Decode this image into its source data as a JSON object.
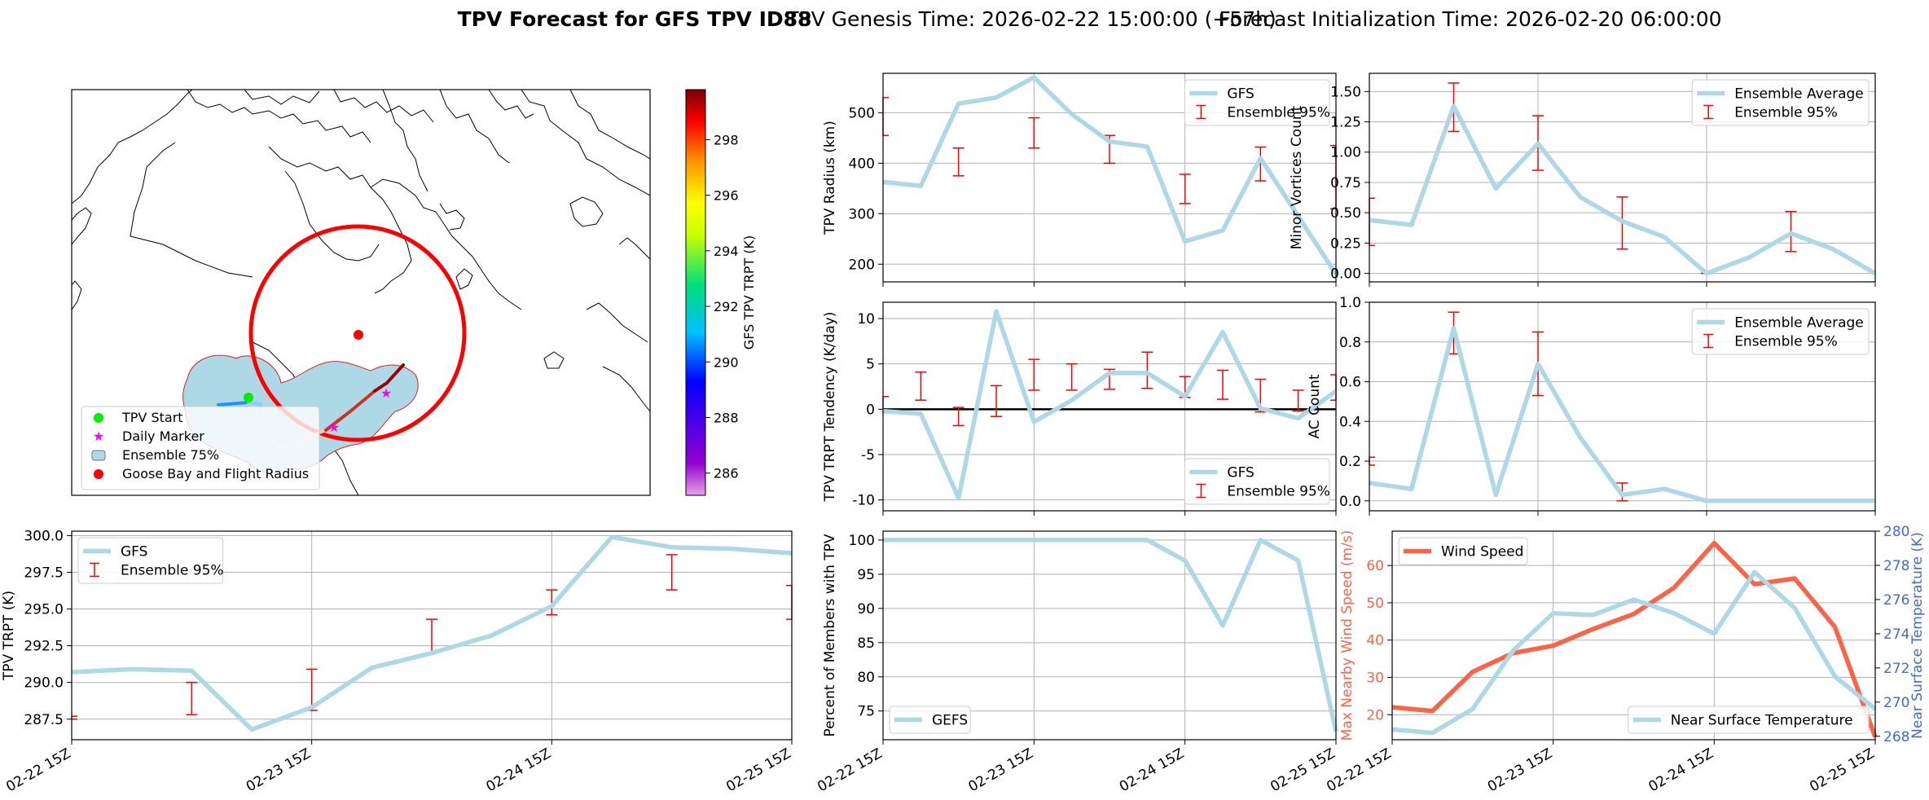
{
  "header": {
    "title_bold": "TPV Forecast for GFS TPV ID88",
    "title_genesis": "TPV Genesis Time: 2026-02-22 15:00:00 (+57h)",
    "title_init": "Forecast Initialization Time: 2026-02-20 06:00:00"
  },
  "colors": {
    "gfs_line": "#add8e6",
    "ensemble_err": "#ff0000",
    "wind": "#ff6347",
    "temp_axis": "#4169e1",
    "flight_radius": "#ff0000"
  },
  "x_ticks": [
    "02-22 15Z",
    "02-23 15Z",
    "02-24 15Z",
    "02-25 15Z"
  ],
  "map": {
    "colorbar_label": "GFS TPV TRPT (K)",
    "colorbar_ticks": [
      "286",
      "288",
      "290",
      "292",
      "294",
      "296",
      "298"
    ],
    "legend": [
      {
        "label": "TPV Start",
        "icon": "green-dot"
      },
      {
        "label": "Daily Marker",
        "icon": "magenta-star"
      },
      {
        "label": "Ensemble 75%",
        "icon": "lightblue-patch"
      },
      {
        "label": "Goose Bay and Flight Radius",
        "icon": "red-dot"
      }
    ]
  },
  "chart_data": [
    {
      "id": "radius",
      "type": "line",
      "title": "",
      "ylabel": "TPV Radius (km)",
      "ylim": [
        165,
        578
      ],
      "yticks": [
        200,
        300,
        400,
        500
      ],
      "x": [
        0,
        1,
        2,
        3,
        4,
        5,
        6,
        7,
        8,
        9,
        10,
        11,
        12
      ],
      "series": [
        {
          "name": "GFS",
          "values": [
            363,
            355,
            518,
            530,
            570,
            497,
            443,
            433,
            245,
            267,
            410,
            295,
            180
          ]
        }
      ],
      "errorbars": {
        "name": "Ensemble 95%",
        "x": [
          0,
          2,
          4,
          6,
          8,
          10,
          12
        ],
        "low": [
          455,
          375,
          430,
          400,
          320,
          365,
          310
        ],
        "high": [
          530,
          430,
          490,
          455,
          378,
          432,
          435
        ]
      },
      "legend": "upper right"
    },
    {
      "id": "minor",
      "type": "line",
      "title": "",
      "ylabel": "Minor Vortices Count",
      "ylim": [
        -0.07,
        1.65
      ],
      "yticks": [
        "0.00",
        "0.25",
        "0.50",
        "0.75",
        "1.00",
        "1.25",
        "1.50"
      ],
      "x": [
        0,
        1,
        2,
        3,
        4,
        5,
        6,
        7,
        8,
        9,
        10,
        11,
        12
      ],
      "series": [
        {
          "name": "Ensemble Average",
          "values": [
            0.44,
            0.4,
            1.38,
            0.7,
            1.07,
            0.63,
            0.43,
            0.3,
            0.0,
            0.13,
            0.33,
            0.2,
            0.0
          ]
        }
      ],
      "errorbars": {
        "name": "Ensemble 95%",
        "x": [
          0,
          2,
          4,
          6,
          8,
          10
        ],
        "low": [
          0.23,
          1.17,
          0.85,
          0.2,
          0.0,
          0.18
        ],
        "high": [
          0.62,
          1.57,
          1.3,
          0.63,
          0.0,
          0.51
        ]
      },
      "legend": "upper right"
    },
    {
      "id": "tendency",
      "type": "line",
      "title": "",
      "ylabel": "TPV TRPT Tendency (K/day)",
      "ylim": [
        -11.2,
        11.8
      ],
      "yticks": [
        -10,
        -5,
        0,
        5,
        10
      ],
      "zero_line": true,
      "x": [
        0,
        1,
        2,
        3,
        4,
        5,
        6,
        7,
        8,
        9,
        10,
        11,
        12
      ],
      "series": [
        {
          "name": "GFS",
          "values": [
            -0.2,
            -0.5,
            -9.8,
            10.8,
            -1.4,
            1.0,
            4.0,
            4.0,
            1.4,
            8.5,
            0.1,
            -1.0,
            2.0
          ]
        }
      ],
      "errorbars": {
        "name": "Ensemble 95%",
        "x": [
          0,
          1,
          2,
          3,
          4,
          5,
          6,
          7,
          8,
          9,
          10,
          11,
          12
        ],
        "low": [
          -0.4,
          1.0,
          -1.8,
          -0.8,
          2.1,
          2.1,
          2.2,
          2.3,
          1.3,
          1.1,
          -0.3,
          -0.2,
          1.0
        ],
        "high": [
          1.4,
          4.1,
          0.2,
          2.6,
          5.5,
          5.0,
          4.4,
          6.3,
          3.6,
          4.3,
          3.3,
          2.1,
          3.8
        ]
      },
      "legend": "lower right"
    },
    {
      "id": "ac",
      "type": "line",
      "title": "",
      "ylabel": "AC Count",
      "ylim": [
        -0.05,
        1.0
      ],
      "yticks": [
        "0.0",
        "0.2",
        "0.4",
        "0.6",
        "0.8",
        "1.0"
      ],
      "x": [
        0,
        1,
        2,
        3,
        4,
        5,
        6,
        7,
        8,
        9,
        10,
        11,
        12
      ],
      "series": [
        {
          "name": "Ensemble Average",
          "values": [
            0.09,
            0.06,
            0.87,
            0.03,
            0.69,
            0.32,
            0.03,
            0.06,
            0.0,
            0.0,
            0.0,
            0.0,
            0.0
          ]
        }
      ],
      "errorbars": {
        "name": "Ensemble 95%",
        "x": [
          0,
          2,
          4,
          6,
          8,
          10
        ],
        "low": [
          0.18,
          0.74,
          0.53,
          0.0,
          0.0,
          0.0
        ],
        "high": [
          0.22,
          0.95,
          0.85,
          0.09,
          0.0,
          0.0
        ]
      },
      "legend": "upper right"
    },
    {
      "id": "trpt",
      "type": "line",
      "title": "",
      "ylabel": "TPV TRPT (K)",
      "ylim": [
        286.1,
        300.3
      ],
      "yticks": [
        "287.5",
        "290.0",
        "292.5",
        "295.0",
        "297.5",
        "300.0"
      ],
      "x": [
        0,
        1,
        2,
        3,
        4,
        5,
        6,
        7,
        8,
        9,
        10,
        11,
        12
      ],
      "series": [
        {
          "name": "GFS",
          "values": [
            290.7,
            290.9,
            290.8,
            286.8,
            288.3,
            291.0,
            292.0,
            293.2,
            295.2,
            299.9,
            299.2,
            299.1,
            298.8
          ]
        }
      ],
      "errorbars": {
        "name": "Ensemble 95%",
        "x": [
          0,
          2,
          4,
          6,
          8,
          10,
          12
        ],
        "low": [
          287.5,
          287.8,
          288.1,
          292.0,
          294.6,
          296.3,
          294.3
        ],
        "high": [
          287.7,
          290.0,
          290.9,
          294.3,
          296.3,
          298.7,
          296.6
        ]
      },
      "legend": "upper left"
    },
    {
      "id": "percent",
      "type": "line",
      "title": "",
      "ylabel": "Percent of Members with TPV",
      "ylim": [
        70.8,
        101.3
      ],
      "yticks": [
        75,
        80,
        85,
        90,
        95,
        100
      ],
      "x": [
        0,
        1,
        2,
        3,
        4,
        5,
        6,
        7,
        8,
        9,
        10,
        11,
        12
      ],
      "series": [
        {
          "name": "GEFS",
          "values": [
            100,
            100,
            100,
            100,
            100,
            100,
            100,
            100,
            97,
            87.5,
            100,
            97,
            72
          ]
        }
      ],
      "legend": "lower left"
    },
    {
      "id": "wind",
      "type": "line",
      "title": "",
      "ylabel": "Max Nearby Wind Speed (m/s)",
      "ylim": [
        13.3,
        69.2
      ],
      "yticks": [
        20,
        30,
        40,
        50,
        60
      ],
      "y2label": "Near Surface Temperature (K)",
      "y2lim": [
        267.8,
        280.0
      ],
      "y2ticks": [
        268,
        270,
        272,
        274,
        276,
        278,
        280
      ],
      "x": [
        0,
        1,
        2,
        3,
        4,
        5,
        6,
        7,
        8,
        9,
        10,
        11,
        12
      ],
      "series": [
        {
          "name": "Wind Speed",
          "axis": "left",
          "values": [
            22,
            21,
            31.5,
            36.5,
            38.5,
            43,
            47,
            54,
            66,
            55,
            56.5,
            43.5,
            14
          ]
        },
        {
          "name": "Near Surface Temperature",
          "axis": "right",
          "values": [
            268.4,
            268.2,
            269.6,
            273.0,
            275.2,
            275.1,
            276.0,
            275.2,
            274.0,
            277.6,
            275.5,
            271.5,
            269.6
          ]
        }
      ],
      "legend": [
        "upper left",
        "lower right"
      ]
    }
  ]
}
